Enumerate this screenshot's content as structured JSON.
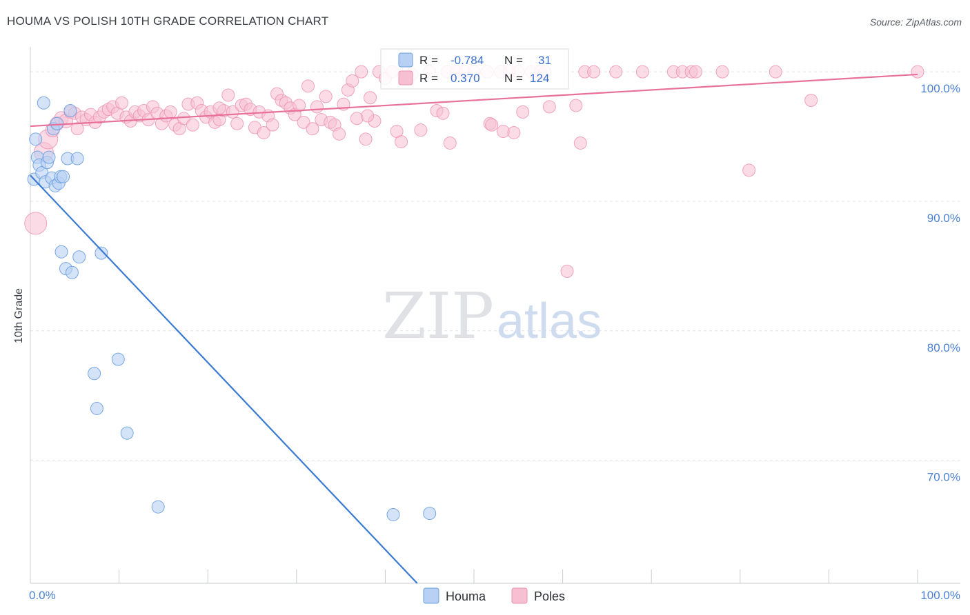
{
  "header": {
    "title": "HOUMA VS POLISH 10TH GRADE CORRELATION CHART",
    "source": "Source: ZipAtlas.com"
  },
  "watermark": {
    "zip": "ZIP",
    "atlas": "atlas"
  },
  "stats": {
    "houma": {
      "r_label": "R =",
      "r_value": "-0.784",
      "n_label": "N =",
      "n_value": "31"
    },
    "poles": {
      "r_label": "R =",
      "r_value": "0.370",
      "n_label": "N =",
      "n_value": "124"
    }
  },
  "colors": {
    "houma_fill": "#b8d0f3",
    "houma_stroke": "#6a9ee0",
    "houma_line": "#3a7ad4",
    "poles_fill": "#f7c0d2",
    "poles_stroke": "#ec8fb0",
    "poles_line": "#e8709a",
    "tick_label": "#4a7fd0",
    "grid": "#dfe3e8"
  },
  "chart_data": {
    "type": "scatter",
    "title": "HOUMA VS POLISH 10TH GRADE CORRELATION CHART",
    "xlabel": "",
    "ylabel": "10th Grade",
    "xlim": [
      0,
      100
    ],
    "ylim": [
      60.5,
      101.5
    ],
    "x_tick_labels": [
      "0.0%",
      "100.0%"
    ],
    "y_ticks": [
      70,
      80,
      90,
      100
    ],
    "y_tick_labels": [
      "70.0%",
      "80.0%",
      "90.0%",
      "100.0%"
    ],
    "grid": true,
    "legend": [
      "Houma",
      "Poles"
    ],
    "series": [
      {
        "name": "Houma",
        "trend": {
          "x": [
            0,
            43.6
          ],
          "y": [
            92.0,
            60.5
          ]
        },
        "points": [
          [
            0.4,
            91.7,
            9
          ],
          [
            0.6,
            94.8,
            9
          ],
          [
            0.8,
            93.4,
            9
          ],
          [
            1.0,
            92.8,
            9
          ],
          [
            1.3,
            92.2,
            9
          ],
          [
            1.5,
            97.6,
            9
          ],
          [
            1.7,
            91.5,
            9
          ],
          [
            1.9,
            93.0,
            9
          ],
          [
            2.1,
            93.4,
            9
          ],
          [
            2.4,
            91.8,
            9
          ],
          [
            2.6,
            95.6,
            9
          ],
          [
            2.8,
            91.2,
            9
          ],
          [
            3.0,
            96.0,
            9
          ],
          [
            3.2,
            91.4,
            9
          ],
          [
            3.4,
            91.9,
            9
          ],
          [
            3.7,
            91.9,
            9
          ],
          [
            4.2,
            93.3,
            9
          ],
          [
            4.5,
            97.0,
            9
          ],
          [
            5.3,
            93.3,
            9
          ],
          [
            3.5,
            86.1,
            9
          ],
          [
            4.0,
            84.8,
            9
          ],
          [
            4.7,
            84.5,
            9
          ],
          [
            5.5,
            85.7,
            9
          ],
          [
            8.0,
            86.0,
            9
          ],
          [
            7.2,
            76.7,
            9
          ],
          [
            7.5,
            74.0,
            9
          ],
          [
            9.9,
            77.8,
            9
          ],
          [
            10.9,
            72.1,
            9
          ],
          [
            14.4,
            66.4,
            9
          ],
          [
            40.9,
            65.8,
            9
          ],
          [
            45.0,
            65.9,
            9
          ]
        ]
      },
      {
        "name": "Poles",
        "trend": {
          "x": [
            0,
            100
          ],
          "y": [
            95.8,
            99.8
          ]
        },
        "points": [
          [
            0.6,
            88.3,
            16
          ],
          [
            1.5,
            93.8,
            14
          ],
          [
            2.0,
            94.8,
            14
          ],
          [
            2.5,
            95.5,
            10
          ],
          [
            3.0,
            96.0,
            10
          ],
          [
            3.5,
            96.4,
            10
          ],
          [
            4.0,
            96.2,
            10
          ],
          [
            4.5,
            96.9,
            9
          ],
          [
            5.0,
            96.8,
            9
          ],
          [
            5.3,
            95.6,
            9
          ],
          [
            5.8,
            96.5,
            9
          ],
          [
            6.3,
            96.3,
            9
          ],
          [
            6.8,
            96.7,
            9
          ],
          [
            7.3,
            96.1,
            9
          ],
          [
            7.8,
            96.5,
            9
          ],
          [
            8.3,
            96.9,
            9
          ],
          [
            8.8,
            97.1,
            9
          ],
          [
            9.3,
            97.3,
            9
          ],
          [
            9.8,
            96.8,
            9
          ],
          [
            10.3,
            97.6,
            9
          ],
          [
            10.8,
            96.5,
            9
          ],
          [
            11.3,
            96.2,
            9
          ],
          [
            11.8,
            96.9,
            9
          ],
          [
            12.3,
            96.6,
            9
          ],
          [
            12.8,
            97.0,
            9
          ],
          [
            13.3,
            96.3,
            9
          ],
          [
            13.8,
            97.3,
            9
          ],
          [
            14.3,
            96.8,
            9
          ],
          [
            14.8,
            96.0,
            9
          ],
          [
            15.3,
            96.6,
            9
          ],
          [
            15.8,
            96.9,
            9
          ],
          [
            16.3,
            95.9,
            9
          ],
          [
            16.8,
            95.6,
            9
          ],
          [
            17.3,
            96.4,
            9
          ],
          [
            17.8,
            97.5,
            9
          ],
          [
            18.3,
            95.9,
            9
          ],
          [
            18.8,
            97.6,
            9
          ],
          [
            19.3,
            97.0,
            9
          ],
          [
            19.8,
            96.5,
            9
          ],
          [
            20.3,
            96.9,
            9
          ],
          [
            20.8,
            96.1,
            9
          ],
          [
            21.3,
            96.3,
            9
          ],
          [
            21.8,
            97.0,
            9
          ],
          [
            22.3,
            98.2,
            9
          ],
          [
            22.8,
            96.9,
            9
          ],
          [
            23.3,
            96.0,
            9
          ],
          [
            23.8,
            97.4,
            9
          ],
          [
            24.3,
            97.5,
            9
          ],
          [
            24.8,
            97.1,
            9
          ],
          [
            25.3,
            95.7,
            9
          ],
          [
            25.8,
            96.9,
            9
          ],
          [
            26.3,
            95.3,
            9
          ],
          [
            26.8,
            96.6,
            9
          ],
          [
            27.3,
            95.9,
            9
          ],
          [
            27.8,
            98.3,
            9
          ],
          [
            28.3,
            97.8,
            9
          ],
          [
            28.8,
            97.6,
            9
          ],
          [
            29.3,
            97.2,
            9
          ],
          [
            29.8,
            96.7,
            9
          ],
          [
            30.3,
            97.4,
            9
          ],
          [
            30.8,
            96.1,
            9
          ],
          [
            31.3,
            98.9,
            9
          ],
          [
            31.8,
            95.6,
            9
          ],
          [
            32.3,
            97.3,
            9
          ],
          [
            32.8,
            96.3,
            9
          ],
          [
            33.3,
            98.1,
            9
          ],
          [
            33.8,
            96.1,
            9
          ],
          [
            34.3,
            95.9,
            9
          ],
          [
            34.8,
            95.2,
            9
          ],
          [
            35.3,
            97.5,
            9
          ],
          [
            35.8,
            98.6,
            9
          ],
          [
            36.3,
            99.3,
            9
          ],
          [
            36.8,
            96.4,
            9
          ],
          [
            37.3,
            100.0,
            9
          ],
          [
            37.8,
            94.8,
            9
          ],
          [
            38.3,
            98.0,
            9
          ],
          [
            38.8,
            96.2,
            9
          ],
          [
            39.3,
            100.0,
            9
          ],
          [
            40.0,
            99.5,
            9
          ],
          [
            40.8,
            100.0,
            9
          ],
          [
            41.3,
            95.4,
            9
          ],
          [
            41.8,
            94.6,
            9
          ],
          [
            42.3,
            100.0,
            9
          ],
          [
            43.0,
            99.8,
            9
          ],
          [
            44.0,
            95.5,
            9
          ],
          [
            45.0,
            100.0,
            9
          ],
          [
            45.8,
            97.0,
            9
          ],
          [
            47.0,
            100.0,
            9
          ],
          [
            47.3,
            94.5,
            9
          ],
          [
            48.0,
            100.0,
            9
          ],
          [
            49.0,
            100.0,
            9
          ],
          [
            50.0,
            100.0,
            9
          ],
          [
            51.5,
            100.0,
            9
          ],
          [
            51.8,
            96.0,
            9
          ],
          [
            53.0,
            100.0,
            9
          ],
          [
            53.3,
            95.4,
            9
          ],
          [
            54.0,
            100.0,
            9
          ],
          [
            55.0,
            100.0,
            9
          ],
          [
            55.5,
            96.9,
            9
          ],
          [
            56.5,
            100.0,
            9
          ],
          [
            57.5,
            100.0,
            9
          ],
          [
            58.0,
            100.0,
            9
          ],
          [
            58.5,
            97.3,
            9
          ],
          [
            60.5,
            84.6,
            9
          ],
          [
            61.5,
            97.4,
            9
          ],
          [
            62.0,
            94.5,
            9
          ],
          [
            62.5,
            100.0,
            9
          ],
          [
            63.5,
            100.0,
            9
          ],
          [
            66.0,
            100.0,
            9
          ],
          [
            69.0,
            100.0,
            9
          ],
          [
            72.5,
            100.0,
            9
          ],
          [
            73.5,
            100.0,
            9
          ],
          [
            74.5,
            100.0,
            9
          ],
          [
            75.0,
            100.0,
            9
          ],
          [
            78.0,
            100.0,
            9
          ],
          [
            81.0,
            92.4,
            9
          ],
          [
            84.0,
            100.0,
            9
          ],
          [
            88.0,
            97.8,
            9
          ],
          [
            100.0,
            100.0,
            9
          ],
          [
            21.3,
            97.2,
            9
          ],
          [
            38.0,
            96.6,
            9
          ],
          [
            46.5,
            96.8,
            9
          ],
          [
            52.0,
            95.9,
            9
          ],
          [
            54.5,
            95.3,
            9
          ]
        ]
      }
    ]
  },
  "legend": {
    "items": [
      "Houma",
      "Poles"
    ]
  }
}
